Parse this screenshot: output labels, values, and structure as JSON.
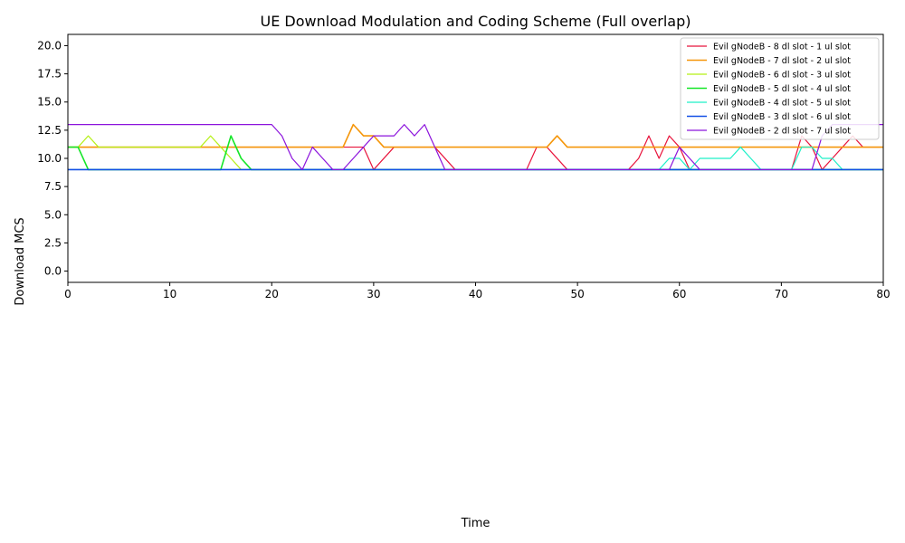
{
  "chart_data": {
    "type": "line",
    "title": "UE Download Modulation and Coding Scheme (Full overlap)",
    "xlabel": "Time",
    "ylabel": "Download MCS",
    "xlim": [
      0,
      80
    ],
    "ylim": [
      -1,
      21
    ],
    "xticks": [
      0,
      10,
      20,
      30,
      40,
      50,
      60,
      70,
      80
    ],
    "yticks": [
      0.0,
      2.5,
      5.0,
      7.5,
      10.0,
      12.5,
      15.0,
      17.5,
      20.0
    ],
    "xtick_labels": [
      "0",
      "10",
      "20",
      "30",
      "40",
      "50",
      "60",
      "70",
      "80"
    ],
    "ytick_labels": [
      "0.0",
      "2.5",
      "5.0",
      "7.5",
      "10.0",
      "12.5",
      "15.0",
      "17.5",
      "20.0"
    ],
    "grid": false,
    "legend_position": "top-right",
    "series": [
      {
        "name": "Evil gNodeB - 8 dl slot - 1 ul slot",
        "color": "#e8143c",
        "width": 1.2,
        "points": [
          [
            0,
            11
          ],
          [
            27,
            11
          ],
          [
            29,
            11
          ],
          [
            30,
            9
          ],
          [
            32,
            11
          ],
          [
            35,
            11
          ],
          [
            36,
            11
          ],
          [
            38,
            9
          ],
          [
            45,
            9
          ],
          [
            46,
            11
          ],
          [
            47,
            11
          ],
          [
            49,
            9
          ],
          [
            55,
            9
          ],
          [
            56,
            10
          ],
          [
            57,
            12
          ],
          [
            58,
            10
          ],
          [
            59,
            12
          ],
          [
            60,
            11
          ],
          [
            61,
            9
          ],
          [
            70,
            9
          ],
          [
            71,
            9
          ],
          [
            72,
            12
          ],
          [
            73,
            11
          ],
          [
            74,
            9
          ],
          [
            75,
            10
          ],
          [
            76,
            11
          ],
          [
            77,
            12
          ],
          [
            78,
            11
          ],
          [
            80,
            11
          ]
        ]
      },
      {
        "name": "Evil gNodeB - 7 dl slot - 2 ul slot",
        "color": "#f5960a",
        "width": 1.6,
        "points": [
          [
            0,
            11
          ],
          [
            27,
            11
          ],
          [
            28,
            13
          ],
          [
            29,
            12
          ],
          [
            30,
            12
          ],
          [
            31,
            11
          ],
          [
            47,
            11
          ],
          [
            48,
            12
          ],
          [
            49,
            11
          ],
          [
            80,
            11
          ]
        ]
      },
      {
        "name": "Evil gNodeB - 6 dl slot - 3 ul slot",
        "color": "#b4f014",
        "width": 1.2,
        "points": [
          [
            0,
            11
          ],
          [
            1,
            11
          ],
          [
            2,
            12
          ],
          [
            3,
            11
          ],
          [
            13,
            11
          ],
          [
            14,
            12
          ],
          [
            15,
            11
          ],
          [
            16,
            10
          ],
          [
            17,
            9
          ],
          [
            80,
            9
          ]
        ]
      },
      {
        "name": "Evil gNodeB - 5 dl slot - 4 ul slot",
        "color": "#14e628",
        "width": 1.6,
        "points": [
          [
            0,
            11
          ],
          [
            1,
            11
          ],
          [
            2,
            9
          ],
          [
            15,
            9
          ],
          [
            16,
            12
          ],
          [
            17,
            10
          ],
          [
            18,
            9
          ],
          [
            80,
            9
          ]
        ]
      },
      {
        "name": "Evil gNodeB - 4 dl slot - 5 ul slot",
        "color": "#1ef0c8",
        "width": 1.2,
        "points": [
          [
            0,
            9
          ],
          [
            58,
            9
          ],
          [
            59,
            10
          ],
          [
            60,
            10
          ],
          [
            61,
            9
          ],
          [
            62,
            10
          ],
          [
            65,
            10
          ],
          [
            66,
            11
          ],
          [
            67,
            10
          ],
          [
            68,
            9
          ],
          [
            71,
            9
          ],
          [
            72,
            11
          ],
          [
            73,
            11
          ],
          [
            74,
            10
          ],
          [
            75,
            10
          ],
          [
            76,
            9
          ],
          [
            80,
            9
          ]
        ]
      },
      {
        "name": "Evil gNodeB - 3 dl slot - 6 ul slot",
        "color": "#1450e6",
        "width": 1.6,
        "points": [
          [
            0,
            9
          ],
          [
            80,
            9
          ]
        ]
      },
      {
        "name": "Evil gNodeB - 2 dl slot - 7 ul slot",
        "color": "#8c14dc",
        "width": 1.2,
        "points": [
          [
            0,
            13
          ],
          [
            20,
            13
          ],
          [
            21,
            12
          ],
          [
            22,
            10
          ],
          [
            23,
            9
          ],
          [
            24,
            11
          ],
          [
            25,
            10
          ],
          [
            26,
            9
          ],
          [
            27,
            9
          ],
          [
            28,
            10
          ],
          [
            29,
            11
          ],
          [
            30,
            12
          ],
          [
            31,
            12
          ],
          [
            32,
            12
          ],
          [
            33,
            13
          ],
          [
            34,
            12
          ],
          [
            35,
            13
          ],
          [
            36,
            11
          ],
          [
            37,
            9
          ],
          [
            59,
            9
          ],
          [
            60,
            11
          ],
          [
            61,
            10
          ],
          [
            62,
            9
          ],
          [
            73,
            9
          ],
          [
            74,
            12
          ],
          [
            75,
            13
          ],
          [
            80,
            13
          ]
        ]
      }
    ]
  }
}
